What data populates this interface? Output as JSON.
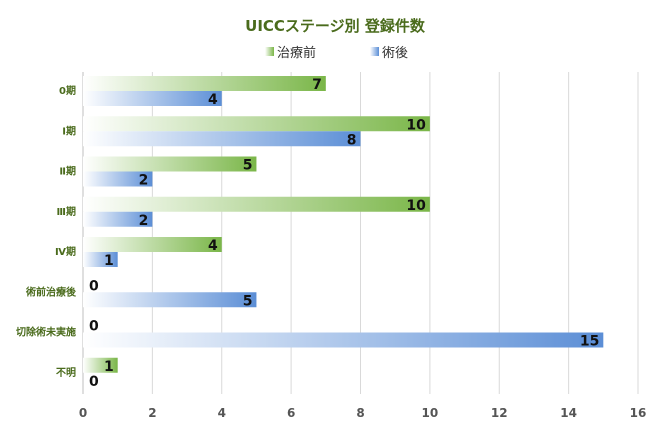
{
  "chart_data": {
    "type": "bar",
    "orientation": "horizontal",
    "title": "UICCステージ別 登録件数",
    "categories": [
      "0期",
      "Ⅰ期",
      "Ⅱ期",
      "Ⅲ期",
      "Ⅳ期",
      "術前治療後",
      "切除術未実施",
      "不明"
    ],
    "series": [
      {
        "name": "治療前",
        "values": [
          7,
          10,
          5,
          10,
          4,
          0,
          0,
          1
        ],
        "color": "#7ab648"
      },
      {
        "name": "術後",
        "values": [
          4,
          8,
          2,
          2,
          1,
          5,
          15,
          0
        ],
        "color": "#5b8ed6"
      }
    ],
    "x_ticks": [
      0,
      2,
      4,
      6,
      8,
      10,
      12,
      14,
      16
    ],
    "xlim": [
      0,
      16
    ],
    "grid": true,
    "legend": "top",
    "colors": {
      "title": "#4a6b1c",
      "label": "#4a6b1c",
      "axis_text": "#555555",
      "grid": "#d9d9d9"
    }
  }
}
